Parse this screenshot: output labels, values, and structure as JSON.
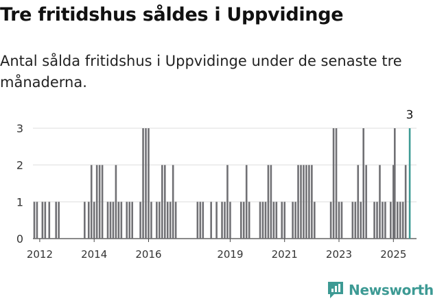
{
  "title": "Tre fritidshus såldes i Uppvidinge",
  "subtitle": "Antal sålda fritidshus i Uppvidinge under de senaste tre månaderna.",
  "brand": {
    "name": "Newsworthy",
    "icon": "newsworthy-logo-icon",
    "color": "#3d9a94"
  },
  "chart_data": {
    "type": "bar",
    "xlabel": "",
    "ylabel": "",
    "ylim": [
      0,
      3
    ],
    "yticks": [
      0,
      1,
      2,
      3
    ],
    "xticks": [
      "2012",
      "2014",
      "2016",
      "2019",
      "2021",
      "2023",
      "2025"
    ],
    "x_range": [
      2011.75,
      2025.85
    ],
    "grid": true,
    "bar_color": "#707074",
    "highlight_color": "#3d9a94",
    "highlight_label": "3",
    "bars": [
      {
        "x": 2011.8,
        "value": 1
      },
      {
        "x": 2011.9,
        "value": 1
      },
      {
        "x": 2012.1,
        "value": 1
      },
      {
        "x": 2012.2,
        "value": 1
      },
      {
        "x": 2012.35,
        "value": 1
      },
      {
        "x": 2012.6,
        "value": 1
      },
      {
        "x": 2012.7,
        "value": 1
      },
      {
        "x": 2013.65,
        "value": 1
      },
      {
        "x": 2013.8,
        "value": 1
      },
      {
        "x": 2013.9,
        "value": 2
      },
      {
        "x": 2014.0,
        "value": 1
      },
      {
        "x": 2014.1,
        "value": 2
      },
      {
        "x": 2014.2,
        "value": 2
      },
      {
        "x": 2014.3,
        "value": 2
      },
      {
        "x": 2014.5,
        "value": 1
      },
      {
        "x": 2014.6,
        "value": 1
      },
      {
        "x": 2014.7,
        "value": 1
      },
      {
        "x": 2014.8,
        "value": 2
      },
      {
        "x": 2014.9,
        "value": 1
      },
      {
        "x": 2015.0,
        "value": 1
      },
      {
        "x": 2015.2,
        "value": 1
      },
      {
        "x": 2015.3,
        "value": 1
      },
      {
        "x": 2015.4,
        "value": 1
      },
      {
        "x": 2015.7,
        "value": 1
      },
      {
        "x": 2015.8,
        "value": 3
      },
      {
        "x": 2015.9,
        "value": 3
      },
      {
        "x": 2016.0,
        "value": 3
      },
      {
        "x": 2016.1,
        "value": 1
      },
      {
        "x": 2016.3,
        "value": 1
      },
      {
        "x": 2016.4,
        "value": 1
      },
      {
        "x": 2016.5,
        "value": 2
      },
      {
        "x": 2016.6,
        "value": 2
      },
      {
        "x": 2016.7,
        "value": 1
      },
      {
        "x": 2016.8,
        "value": 1
      },
      {
        "x": 2016.9,
        "value": 2
      },
      {
        "x": 2017.0,
        "value": 1
      },
      {
        "x": 2017.8,
        "value": 1
      },
      {
        "x": 2017.9,
        "value": 1
      },
      {
        "x": 2018.0,
        "value": 1
      },
      {
        "x": 2018.3,
        "value": 1
      },
      {
        "x": 2018.5,
        "value": 1
      },
      {
        "x": 2018.7,
        "value": 1
      },
      {
        "x": 2018.8,
        "value": 1
      },
      {
        "x": 2018.9,
        "value": 2
      },
      {
        "x": 2019.0,
        "value": 1
      },
      {
        "x": 2019.4,
        "value": 1
      },
      {
        "x": 2019.5,
        "value": 1
      },
      {
        "x": 2019.6,
        "value": 2
      },
      {
        "x": 2019.7,
        "value": 1
      },
      {
        "x": 2020.1,
        "value": 1
      },
      {
        "x": 2020.2,
        "value": 1
      },
      {
        "x": 2020.3,
        "value": 1
      },
      {
        "x": 2020.4,
        "value": 2
      },
      {
        "x": 2020.5,
        "value": 2
      },
      {
        "x": 2020.6,
        "value": 1
      },
      {
        "x": 2020.7,
        "value": 1
      },
      {
        "x": 2020.9,
        "value": 1
      },
      {
        "x": 2021.0,
        "value": 1
      },
      {
        "x": 2021.3,
        "value": 1
      },
      {
        "x": 2021.4,
        "value": 1
      },
      {
        "x": 2021.5,
        "value": 2
      },
      {
        "x": 2021.6,
        "value": 2
      },
      {
        "x": 2021.7,
        "value": 2
      },
      {
        "x": 2021.8,
        "value": 2
      },
      {
        "x": 2021.9,
        "value": 2
      },
      {
        "x": 2022.0,
        "value": 2
      },
      {
        "x": 2022.1,
        "value": 1
      },
      {
        "x": 2022.7,
        "value": 1
      },
      {
        "x": 2022.8,
        "value": 3
      },
      {
        "x": 2022.9,
        "value": 3
      },
      {
        "x": 2023.0,
        "value": 1
      },
      {
        "x": 2023.1,
        "value": 1
      },
      {
        "x": 2023.5,
        "value": 1
      },
      {
        "x": 2023.6,
        "value": 1
      },
      {
        "x": 2023.7,
        "value": 2
      },
      {
        "x": 2023.8,
        "value": 1
      },
      {
        "x": 2023.9,
        "value": 3
      },
      {
        "x": 2024.0,
        "value": 2
      },
      {
        "x": 2024.3,
        "value": 1
      },
      {
        "x": 2024.4,
        "value": 1
      },
      {
        "x": 2024.5,
        "value": 2
      },
      {
        "x": 2024.6,
        "value": 1
      },
      {
        "x": 2024.7,
        "value": 1
      },
      {
        "x": 2024.9,
        "value": 1
      },
      {
        "x": 2025.0,
        "value": 2
      },
      {
        "x": 2025.05,
        "value": 3
      },
      {
        "x": 2025.15,
        "value": 1
      },
      {
        "x": 2025.25,
        "value": 1
      },
      {
        "x": 2025.35,
        "value": 1
      },
      {
        "x": 2025.45,
        "value": 2
      },
      {
        "x": 2025.6,
        "value": 3,
        "highlight": true
      }
    ]
  }
}
